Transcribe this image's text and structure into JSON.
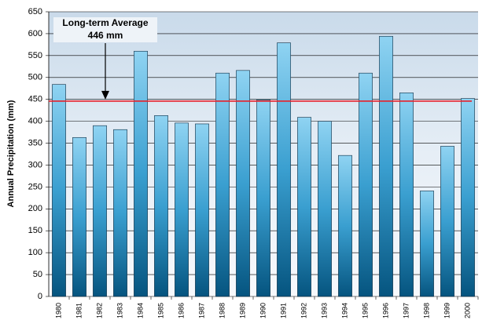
{
  "chart_data": {
    "type": "bar",
    "y_label": "Annual Precipitation (mm)",
    "categories": [
      "1980",
      "1981",
      "1982",
      "1983",
      "1984",
      "1985",
      "1986",
      "1987",
      "1988",
      "1989",
      "1990",
      "1991",
      "1992",
      "1993",
      "1994",
      "1995",
      "1996",
      "1997",
      "1998",
      "1999",
      "2000"
    ],
    "values": [
      484,
      363,
      390,
      381,
      560,
      413,
      396,
      394,
      510,
      516,
      449,
      579,
      409,
      400,
      322,
      510,
      594,
      465,
      241,
      343,
      452
    ],
    "color": "#1a7fb8",
    "ylim": [
      0,
      650
    ],
    "yticks": [
      0,
      50,
      100,
      150,
      200,
      250,
      300,
      350,
      400,
      450,
      500,
      550,
      600,
      650
    ],
    "grid": true,
    "reference_line": {
      "title": "Long-term Average",
      "value": 446,
      "label": "446 mm",
      "color": "#e8202a"
    }
  }
}
